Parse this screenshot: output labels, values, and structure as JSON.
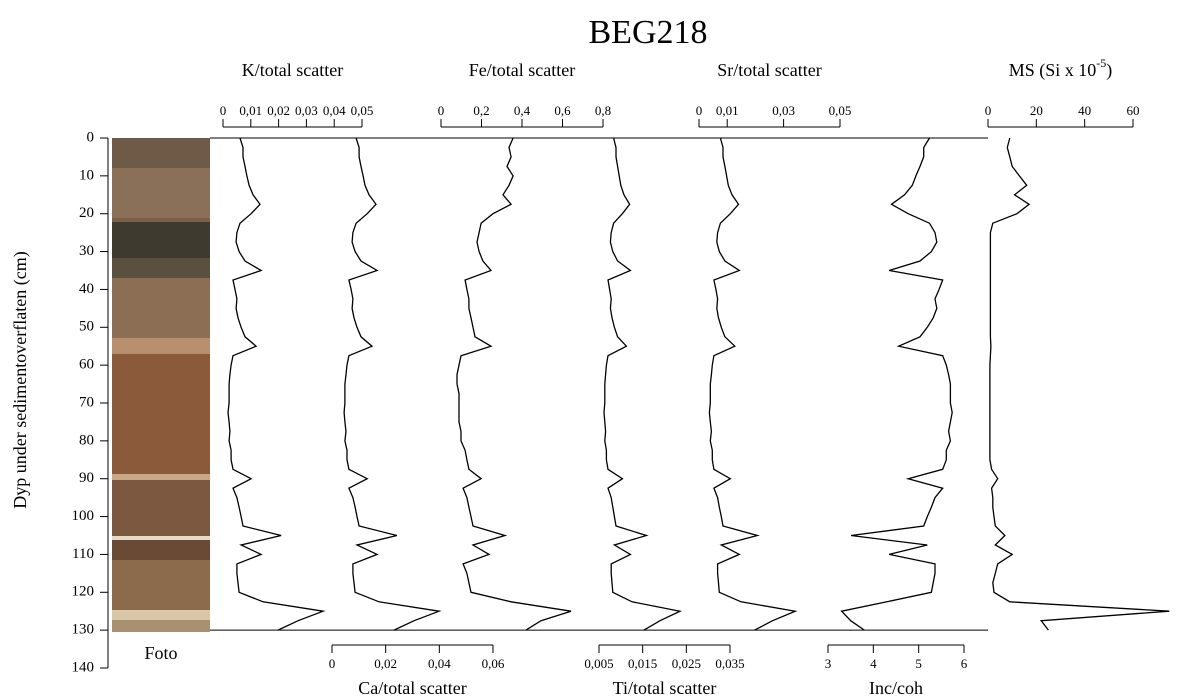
{
  "chart_data": {
    "type": "line",
    "title": "BEG218",
    "ylabel": "Dyp under sedimentoverflaten (cm)",
    "photo_label": "Foto",
    "ylim": [
      0,
      140
    ],
    "yticks": [
      0,
      10,
      20,
      30,
      40,
      50,
      60,
      70,
      80,
      90,
      100,
      110,
      120,
      130,
      140
    ],
    "y": [
      0,
      2.5,
      5,
      7.5,
      10,
      12.5,
      15,
      17.5,
      20,
      22.5,
      25,
      27.5,
      30,
      32.5,
      35,
      37.5,
      40,
      42.5,
      45,
      47.5,
      50,
      52.5,
      55,
      57.5,
      60,
      62.5,
      65,
      67.5,
      70,
      72.5,
      75,
      77.5,
      80,
      82.5,
      85,
      87.5,
      90,
      92.5,
      95,
      97.5,
      100,
      102.5,
      105,
      107.5,
      110,
      112.5,
      115,
      117.5,
      120,
      122.5,
      125,
      127.5,
      130
    ],
    "series": [
      {
        "name": "K/total scatter",
        "color": "#000000",
        "axis": "top",
        "xlim": [
          0,
          0.05
        ],
        "xticks": [
          0,
          {
            "value": 0.01,
            "label": "0,01"
          },
          {
            "value": 0.02,
            "label": "0,02"
          },
          {
            "value": 0.03,
            "label": "0,03"
          },
          {
            "value": 0.04,
            "label": "0,04"
          },
          {
            "value": 0.05,
            "label": "0,05"
          }
        ],
        "values": [
          0.0061,
          0.0072,
          0.0072,
          0.0079,
          0.0086,
          0.0094,
          0.0108,
          0.0133,
          0.0101,
          0.0061,
          0.005,
          0.0047,
          0.0058,
          0.0079,
          0.0137,
          0.0036,
          0.0043,
          0.005,
          0.0047,
          0.0054,
          0.0065,
          0.0079,
          0.0119,
          0.0036,
          0.0029,
          0.0025,
          0.0022,
          0.0022,
          0.0022,
          0.0018,
          0.0022,
          0.0025,
          0.0022,
          0.0029,
          0.0029,
          0.0036,
          0.0101,
          0.0036,
          0.005,
          0.0058,
          0.0065,
          0.0072,
          0.0209,
          0.0065,
          0.0137,
          0.005,
          0.005,
          0.0054,
          0.0058,
          0.0144,
          0.036,
          0.027,
          0.0198
        ]
      },
      {
        "name": "Ca/total scatter",
        "color": "#000000",
        "axis": "bottom",
        "xlim": [
          0,
          0.06
        ],
        "xticks": [
          0,
          {
            "value": 0.02,
            "label": "0,02"
          },
          {
            "value": 0.04,
            "label": "0,04"
          },
          {
            "value": 0.06,
            "label": "0,06"
          }
        ],
        "values": [
          0.009,
          0.0101,
          0.0101,
          0.0108,
          0.0116,
          0.0123,
          0.0138,
          0.0164,
          0.0131,
          0.009,
          0.0078,
          0.0075,
          0.0086,
          0.0108,
          0.0168,
          0.0063,
          0.0071,
          0.0078,
          0.0075,
          0.0082,
          0.0093,
          0.0108,
          0.0149,
          0.0063,
          0.0056,
          0.0052,
          0.0048,
          0.0048,
          0.0048,
          0.0045,
          0.0048,
          0.0052,
          0.0048,
          0.0056,
          0.0056,
          0.0063,
          0.0131,
          0.0063,
          0.0078,
          0.0086,
          0.0093,
          0.0101,
          0.0242,
          0.0093,
          0.0168,
          0.0078,
          0.0078,
          0.0082,
          0.0086,
          0.0175,
          0.0399,
          0.0306,
          0.0231
        ]
      },
      {
        "name": "Fe/total scatter",
        "color": "#000000",
        "axis": "top",
        "xlim": [
          0,
          0.8
        ],
        "xticks": [
          0,
          {
            "value": 0.2,
            "label": "0,2"
          },
          {
            "value": 0.4,
            "label": "0,4"
          },
          {
            "value": 0.6,
            "label": "0,6"
          },
          {
            "value": 0.8,
            "label": "0,8"
          }
        ],
        "values": [
          0.356,
          0.336,
          0.346,
          0.326,
          0.356,
          0.336,
          0.306,
          0.346,
          0.257,
          0.198,
          0.188,
          0.178,
          0.188,
          0.207,
          0.247,
          0.119,
          0.128,
          0.138,
          0.138,
          0.148,
          0.158,
          0.168,
          0.247,
          0.099,
          0.089,
          0.079,
          0.079,
          0.089,
          0.089,
          0.089,
          0.089,
          0.099,
          0.099,
          0.119,
          0.128,
          0.138,
          0.198,
          0.109,
          0.128,
          0.138,
          0.148,
          0.158,
          0.316,
          0.158,
          0.237,
          0.109,
          0.128,
          0.138,
          0.148,
          0.346,
          0.642,
          0.494,
          0.42
        ]
      },
      {
        "name": "Ti/total scatter",
        "color": "#000000",
        "axis": "bottom",
        "xlim": [
          0.005,
          0.035
        ],
        "xticks": [
          {
            "value": 0.005,
            "label": "0,005"
          },
          {
            "value": 0.015,
            "label": "0,015"
          },
          {
            "value": 0.025,
            "label": "0,025"
          },
          {
            "value": 0.035,
            "label": "0,035"
          }
        ],
        "values": [
          0.00834,
          0.00889,
          0.00889,
          0.00926,
          0.00963,
          0.00999,
          0.01073,
          0.01201,
          0.01036,
          0.00834,
          0.00779,
          0.00761,
          0.00816,
          0.00926,
          0.01219,
          0.00706,
          0.00743,
          0.00779,
          0.00761,
          0.00798,
          0.00853,
          0.00926,
          0.01127,
          0.00706,
          0.00669,
          0.00651,
          0.00633,
          0.00633,
          0.00633,
          0.00615,
          0.00633,
          0.00651,
          0.00633,
          0.00669,
          0.00669,
          0.00706,
          0.01036,
          0.00706,
          0.00779,
          0.00816,
          0.00853,
          0.00889,
          0.01585,
          0.00853,
          0.01219,
          0.00779,
          0.00779,
          0.00798,
          0.00816,
          0.01256,
          0.02355,
          0.01897,
          0.0153
        ]
      },
      {
        "name": "Sr/total scatter",
        "color": "#000000",
        "axis": "top",
        "xlim": [
          0,
          0.05
        ],
        "xticks": [
          0,
          {
            "value": 0.01,
            "label": "0,01"
          },
          {
            "value": 0.03,
            "label": "0,03"
          },
          {
            "value": 0.05,
            "label": "0,05"
          }
        ],
        "values": [
          0.0076,
          0.0085,
          0.0085,
          0.0092,
          0.0098,
          0.0104,
          0.0117,
          0.014,
          0.0111,
          0.0076,
          0.0066,
          0.0063,
          0.0072,
          0.0092,
          0.0143,
          0.0053,
          0.006,
          0.0066,
          0.0063,
          0.0069,
          0.0079,
          0.0092,
          0.0127,
          0.0053,
          0.0047,
          0.0044,
          0.004,
          0.004,
          0.004,
          0.0037,
          0.004,
          0.0044,
          0.004,
          0.0047,
          0.0047,
          0.0053,
          0.0111,
          0.0053,
          0.0066,
          0.0072,
          0.0079,
          0.0085,
          0.0207,
          0.0079,
          0.0143,
          0.0066,
          0.0066,
          0.0069,
          0.0072,
          0.0149,
          0.0341,
          0.0261,
          0.0197
        ]
      },
      {
        "name": "Inc/coh",
        "color": "#000000",
        "axis": "bottom",
        "xlim": [
          3,
          6
        ],
        "xticks": [
          3,
          4,
          5,
          6
        ],
        "values": [
          5.24,
          5.11,
          5.11,
          5.03,
          4.94,
          4.86,
          4.69,
          4.4,
          4.77,
          5.24,
          5.36,
          5.4,
          5.28,
          5.03,
          4.35,
          5.53,
          5.45,
          5.36,
          5.4,
          5.32,
          5.19,
          5.03,
          4.56,
          5.53,
          5.61,
          5.66,
          5.7,
          5.7,
          5.7,
          5.74,
          5.7,
          5.66,
          5.7,
          5.61,
          5.61,
          5.53,
          4.77,
          5.53,
          5.36,
          5.28,
          5.19,
          5.11,
          3.51,
          5.19,
          4.35,
          5.36,
          5.36,
          5.32,
          5.28,
          4.3,
          3.3,
          3.5,
          3.8
        ]
      },
      {
        "name": [
          "MS (Si x 10",
          "-5",
          ")"
        ],
        "color": "#000000",
        "axis": "top",
        "xlim": [
          0,
          60
        ],
        "xticks": [
          0,
          20,
          40,
          60
        ],
        "values": [
          9,
          8,
          9,
          10,
          13,
          16,
          11,
          17,
          12,
          2,
          1,
          1,
          1,
          1,
          1,
          1,
          1,
          1,
          1,
          1,
          1,
          1,
          1.2,
          1,
          0.8,
          0.8,
          0.8,
          0.8,
          0.8,
          0.8,
          0.8,
          0.8,
          0.8,
          0.8,
          0.8,
          1.5,
          4,
          1.5,
          2,
          2,
          2.5,
          3,
          7,
          3,
          10,
          4,
          3,
          2,
          2.5,
          9,
          75,
          22,
          25
        ]
      }
    ]
  }
}
